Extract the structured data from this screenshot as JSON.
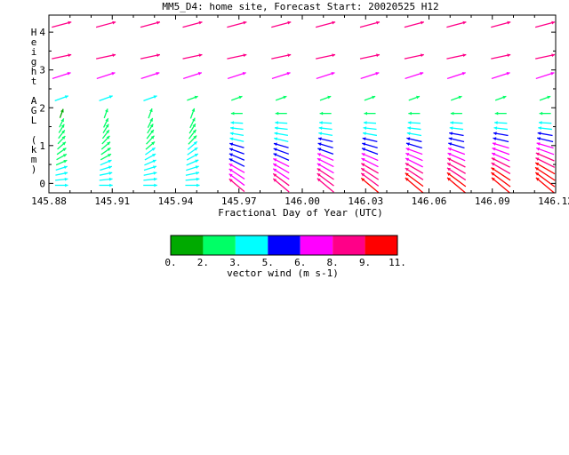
{
  "chart_data": {
    "type": "vector-field",
    "title": "MM5_D4: home site,  Forecast Start: 20020525 H12",
    "xlabel": "Fractional Day of Year (UTC)",
    "ylabel": "Height AGL (km)",
    "xlim": [
      145.88,
      146.12
    ],
    "ylim": [
      -0.25,
      4.45
    ],
    "x_ticks": [
      "145.88",
      "145.91",
      "145.94",
      "145.97",
      "146.00",
      "146.03",
      "146.06",
      "146.09",
      "146.12"
    ],
    "y_ticks": [
      "0",
      "1",
      "2",
      "3",
      "4"
    ],
    "grid": false,
    "times": [
      145.886,
      145.907,
      145.928,
      145.948,
      145.969,
      145.99,
      146.011,
      146.032,
      146.053,
      146.073,
      146.094,
      146.115
    ],
    "upper_levels": [
      {
        "height": 4.2,
        "dir_deg": 255,
        "speed": 8.2
      },
      {
        "height": 3.35,
        "dir_deg": 258,
        "speed": 8.0
      },
      {
        "height": 2.85,
        "dir_deg": 252,
        "speed": 7.6
      },
      {
        "height": 2.25,
        "dir_deg": 250,
        "speed": 3.0
      }
    ],
    "low_levels_km": [
      1.85,
      1.6,
      1.45,
      1.3,
      1.15,
      1.0,
      0.85,
      0.7,
      0.55,
      0.4,
      0.25,
      0.1,
      -0.05
    ],
    "colorbar": {
      "label": "vector wind (m s-1)",
      "ticks": [
        "0.",
        "2.",
        "3.",
        "5.",
        "6.",
        "8.",
        "9.",
        "11."
      ],
      "colors": [
        "#00aa00",
        "#00ff66",
        "#00ffff",
        "#0000ff",
        "#ff00ff",
        "#ff0088",
        "#ff0000"
      ]
    }
  }
}
